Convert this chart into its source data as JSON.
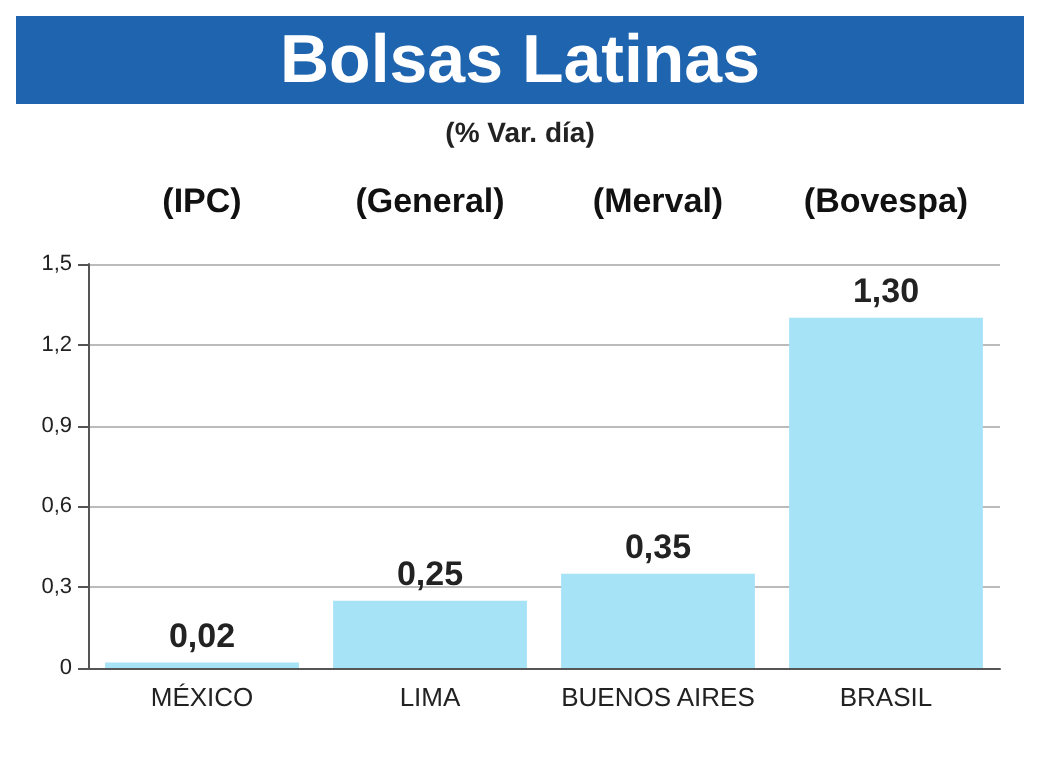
{
  "chart_data": {
    "type": "bar",
    "title": "Bolsas Latinas",
    "subtitle": "(% Var. día)",
    "categories": [
      "MÉXICO",
      "LIMA",
      "BUENOS AIRES",
      "BRASIL"
    ],
    "values": [
      0.02,
      0.25,
      0.35,
      1.3
    ],
    "value_labels": [
      "0,02",
      "0,25",
      "0,35",
      "1,30"
    ],
    "color": "#a6e3f7",
    "ylim": [
      0,
      1.5
    ],
    "yticks": [
      0,
      {
        "value": 0.3,
        "label": "0,3"
      },
      {
        "value": 0.6,
        "label": "0,6"
      },
      {
        "value": 0.9,
        "label": "0,9"
      },
      {
        "value": 1.2,
        "label": "1,2"
      },
      {
        "value": 1.5,
        "label": "1,5"
      }
    ],
    "grid": "y",
    "annotations": [
      "(IPC)",
      "(General)",
      "(Merval)",
      "(Bovespa)"
    ]
  }
}
